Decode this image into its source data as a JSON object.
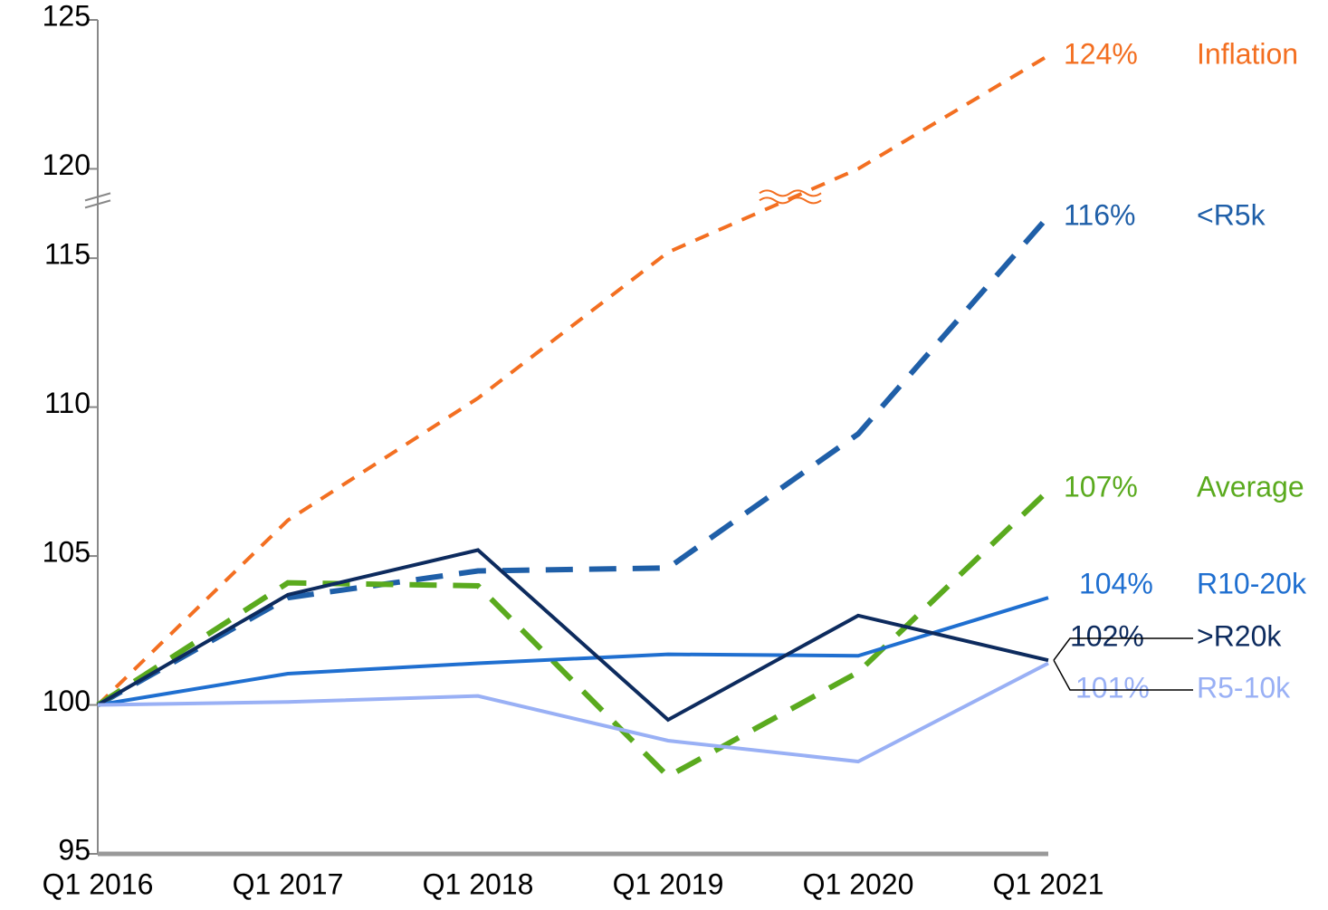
{
  "chart_data": {
    "type": "line",
    "categories": [
      "Q1 2016",
      "Q1 2017",
      "Q1 2018",
      "Q1 2019",
      "Q1 2020",
      "Q1 2021"
    ],
    "ylim": [
      95,
      125
    ],
    "yticks": [
      95,
      100,
      105,
      110,
      115,
      120,
      125
    ],
    "ybreak": [
      117,
      119
    ],
    "series": [
      {
        "name": "Inflation",
        "color": "#f36f21",
        "dashed": true,
        "values": [
          100,
          106.2,
          110.3,
          115.2,
          120,
          123.8
        ],
        "value_labels": [
          null,
          null,
          null,
          null,
          null,
          "124%"
        ]
      },
      {
        "name": "<R5k",
        "color": "#1f5fa8",
        "dashed": true,
        "values": [
          100,
          103.6,
          104.5,
          104.6,
          109.1,
          116.4
        ],
        "value_labels": [
          null,
          null,
          null,
          null,
          null,
          "116%"
        ]
      },
      {
        "name": "Average",
        "color": "#5aaa1e",
        "dashed": true,
        "values": [
          100,
          104.1,
          104,
          97.6,
          101.1,
          107.2
        ],
        "value_labels": [
          null,
          null,
          null,
          null,
          null,
          "107%"
        ]
      },
      {
        "name": "R10-20k",
        "color": "#1f6fd0",
        "dashed": false,
        "values": [
          100,
          101.05,
          101.4,
          101.7,
          101.65,
          103.6
        ],
        "value_labels": [
          null,
          null,
          null,
          null,
          null,
          "104%"
        ]
      },
      {
        "name": ">R20k",
        "color": "#0d2b5e",
        "dashed": false,
        "values": [
          100,
          103.7,
          105.2,
          99.5,
          103,
          101.5
        ],
        "value_labels": [
          null,
          null,
          null,
          null,
          null,
          "102%"
        ]
      },
      {
        "name": "R5-10k",
        "color": "#99b0f5",
        "dashed": false,
        "values": [
          100,
          100.1,
          100.3,
          98.8,
          98.1,
          101.4
        ],
        "value_labels": [
          null,
          null,
          null,
          null,
          null,
          "101%"
        ]
      }
    ]
  }
}
